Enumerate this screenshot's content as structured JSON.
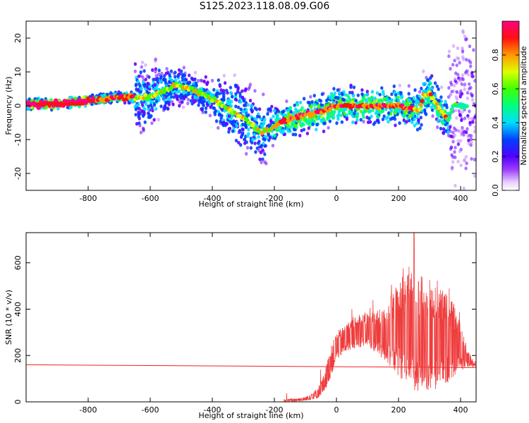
{
  "title": "S125.2023.118.08.09.G06",
  "chart_data": [
    {
      "type": "heatmap",
      "name": "spectrogram",
      "xlabel": "Height of straight line (km)",
      "ylabel": "Frequency (Hz)",
      "xlim": [
        -1000,
        450
      ],
      "ylim": [
        -25,
        25
      ],
      "x_ticks": [
        -800,
        -600,
        -400,
        -200,
        0,
        200,
        400
      ],
      "y_ticks": [
        -20,
        -10,
        0,
        10,
        20
      ],
      "ridge": {
        "x": [
          -1000,
          -900,
          -800,
          -700,
          -600,
          -520,
          -470,
          -400,
          -330,
          -280,
          -240,
          -180,
          -120,
          -50,
          0,
          100,
          150,
          200,
          250,
          270,
          280,
          300,
          320,
          340,
          360,
          380
        ],
        "y": [
          0.5,
          0.5,
          1.5,
          2.5,
          2.5,
          6,
          5,
          2,
          -2,
          -5,
          -8,
          -5,
          -3,
          -2,
          0,
          0,
          0,
          0,
          -1,
          -1,
          3,
          4,
          1,
          -2,
          -4,
          0
        ]
      },
      "colorbar": {
        "label": "Normalized spectral amplitude",
        "range": [
          0,
          1
        ],
        "ticks": [
          0.0,
          0.2,
          0.4,
          0.6,
          0.8
        ]
      }
    },
    {
      "type": "line",
      "name": "snr",
      "xlabel": "Height of straight line (km)",
      "ylabel": "SNR (10 * v/v)",
      "xlim": [
        -1000,
        450
      ],
      "ylim": [
        0,
        730
      ],
      "x_ticks": [
        -800,
        -600,
        -400,
        -200,
        0,
        200,
        400
      ],
      "y_ticks": [
        0,
        200,
        400,
        600
      ],
      "series": [
        {
          "color": "#ee2222",
          "x": [
            -1000,
            450
          ],
          "y": [
            160,
            148
          ]
        },
        {
          "color": "#ee3333",
          "x_start": -170,
          "x_end": 450,
          "upper_envelope": {
            "x": [
              -170,
              -100,
              -60,
              -40,
              -20,
              0,
              50,
              100,
              150,
              200,
              250,
              300,
              350,
              380,
              400,
              420,
              450
            ],
            "y": [
              10,
              20,
              60,
              120,
              230,
              300,
              360,
              390,
              400,
              520,
              570,
              520,
              480,
              420,
              330,
              240,
              150
            ]
          },
          "lower_envelope": {
            "x": [
              -170,
              -100,
              -60,
              -40,
              -20,
              0,
              50,
              100,
              150,
              200,
              250,
              300,
              350,
              380,
              400,
              420,
              450
            ],
            "y": [
              0,
              5,
              15,
              40,
              100,
              180,
              230,
              240,
              180,
              110,
              50,
              40,
              70,
              110,
              130,
              150,
              150
            ]
          },
          "peak": {
            "x": 250,
            "y": 730
          }
        }
      ]
    }
  ]
}
